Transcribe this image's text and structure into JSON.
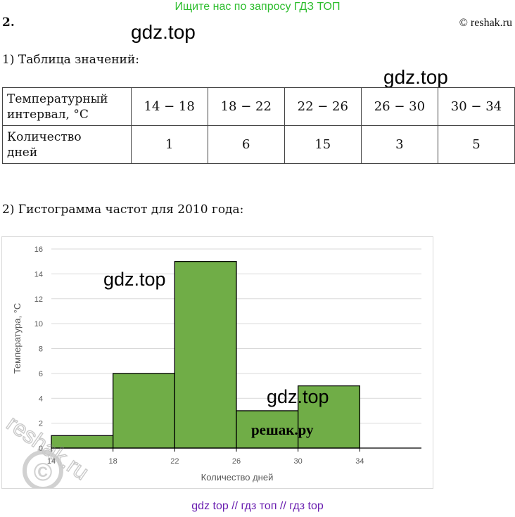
{
  "banner": "Ищите нас по запросу ГДЗ ТОП",
  "problem_number": "2.",
  "copyright": "© reshak.ru",
  "watermark": "gdz.top",
  "watermark_reshak": "решак.ру",
  "watermark_diag": "reshak.ru",
  "section1_title": "1) Таблица значений:",
  "table": {
    "row1_header_line1": "Температурный",
    "row1_header_line2": "интервал, °С",
    "row2_header_line1": "Количество",
    "row2_header_line2": "дней",
    "intervals": [
      "14 − 18",
      "18 − 22",
      "22 − 26",
      "26 − 30",
      "30 − 34"
    ],
    "counts": [
      "1",
      "6",
      "15",
      "3",
      "5"
    ]
  },
  "section2_title": "2) Гистограмма частот для 2010 года:",
  "chart_data": {
    "type": "bar",
    "subtype": "histogram",
    "bin_edges": [
      14,
      18,
      22,
      26,
      30,
      34
    ],
    "values": [
      1,
      6,
      15,
      3,
      5
    ],
    "x_ticks": [
      "14",
      "18",
      "22",
      "26",
      "30",
      "34"
    ],
    "y_ticks": [
      "0",
      "2",
      "4",
      "6",
      "8",
      "10",
      "12",
      "14",
      "16"
    ],
    "xlim": [
      14,
      38
    ],
    "ylim": [
      0,
      16
    ],
    "xlabel": "Количество дней",
    "ylabel": "Температура, °С",
    "grid": "horizontal",
    "bar_color": "#70ad47"
  },
  "footer": "gdz top  //  гдз топ  //  гдз top"
}
